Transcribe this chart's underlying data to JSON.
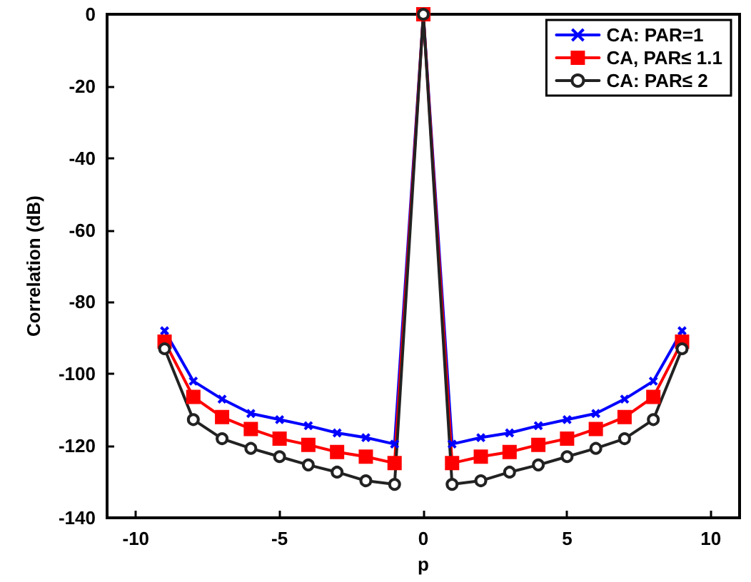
{
  "chart_data": {
    "type": "line",
    "xlabel": "p",
    "ylabel": "Correlation (dB)",
    "x": [
      -9,
      -8,
      -7,
      -6,
      -5,
      -4,
      -3,
      -2,
      -1,
      0,
      1,
      2,
      3,
      4,
      5,
      6,
      7,
      8,
      9
    ],
    "series": [
      {
        "name": "CA: PAR=1",
        "color": "#0000ff",
        "marker": "cross",
        "values": [
          -88,
          -102,
          -107,
          -111,
          -112.7,
          -114.4,
          -116.4,
          -117.7,
          -119.5,
          0,
          -119.5,
          -117.7,
          -116.4,
          -114.4,
          -112.7,
          -111,
          -107,
          -102,
          -88
        ]
      },
      {
        "name": "CA, PAR≤ 1.1",
        "color": "#ff0000",
        "marker": "square",
        "values": [
          -91,
          -106.4,
          -112,
          -115.3,
          -118,
          -119.7,
          -121.7,
          -123,
          -124.8,
          0,
          -124.8,
          -123,
          -121.7,
          -119.7,
          -118,
          -115.3,
          -112,
          -106.4,
          -91
        ]
      },
      {
        "name": "CA: PAR≤ 2",
        "color": "#222222",
        "marker": "circle",
        "values": [
          -93,
          -112.7,
          -118,
          -120.7,
          -123,
          -125.3,
          -127.3,
          -129.7,
          -130.7,
          0,
          -130.7,
          -129.7,
          -127.3,
          -125.3,
          -123,
          -120.7,
          -118,
          -112.7,
          -93
        ]
      }
    ],
    "xlim": [
      -11,
      11
    ],
    "xticks": [
      -10,
      -5,
      0,
      5,
      10
    ],
    "ylim": [
      -140,
      0
    ],
    "yticks": [
      -140,
      -120,
      -100,
      -80,
      -60,
      -40,
      -20,
      0
    ],
    "grid": false,
    "legend": "top right",
    "line_style": "solid"
  }
}
